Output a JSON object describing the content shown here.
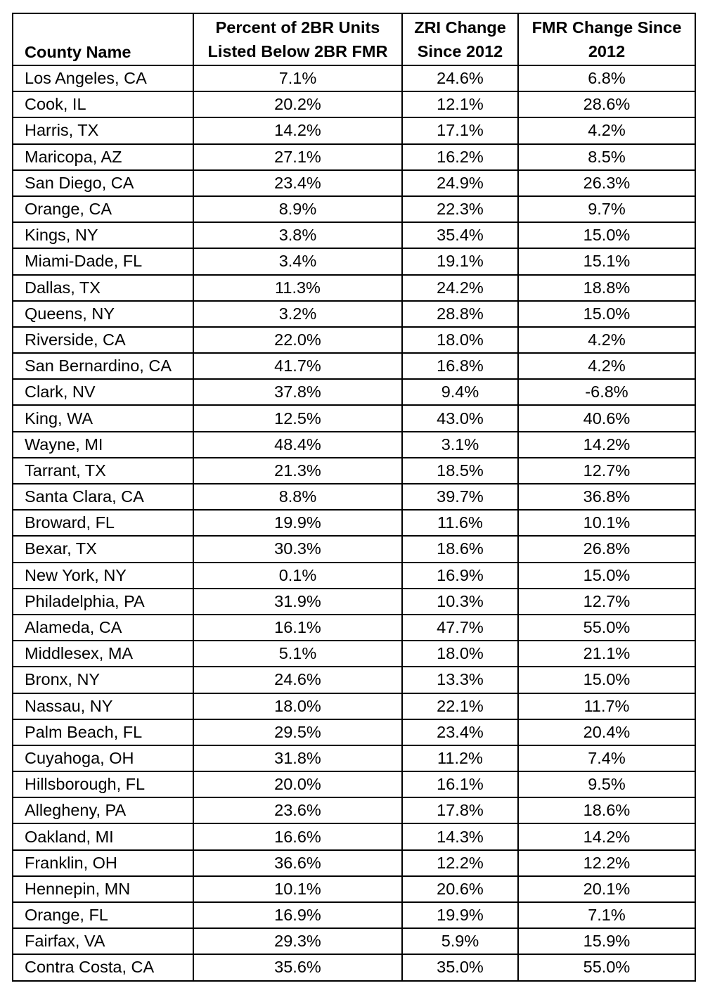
{
  "table": {
    "headers": {
      "county": "County Name",
      "percent_line1": "Percent of 2BR Units",
      "percent_line2": "Listed Below 2BR FMR",
      "zri_line1": "ZRI Change",
      "zri_line2": "Since 2012",
      "fmr_line1": "FMR Change Since",
      "fmr_line2": "2012"
    },
    "rows": [
      {
        "county": "Los Angeles, CA",
        "percent": "7.1%",
        "zri": "24.6%",
        "fmr": "6.8%"
      },
      {
        "county": "Cook, IL",
        "percent": "20.2%",
        "zri": "12.1%",
        "fmr": "28.6%"
      },
      {
        "county": "Harris, TX",
        "percent": "14.2%",
        "zri": "17.1%",
        "fmr": "4.2%"
      },
      {
        "county": "Maricopa, AZ",
        "percent": "27.1%",
        "zri": "16.2%",
        "fmr": "8.5%"
      },
      {
        "county": "San Diego, CA",
        "percent": "23.4%",
        "zri": "24.9%",
        "fmr": "26.3%"
      },
      {
        "county": "Orange, CA",
        "percent": "8.9%",
        "zri": "22.3%",
        "fmr": "9.7%"
      },
      {
        "county": "Kings, NY",
        "percent": "3.8%",
        "zri": "35.4%",
        "fmr": "15.0%"
      },
      {
        "county": "Miami-Dade, FL",
        "percent": "3.4%",
        "zri": "19.1%",
        "fmr": "15.1%"
      },
      {
        "county": "Dallas, TX",
        "percent": "11.3%",
        "zri": "24.2%",
        "fmr": "18.8%"
      },
      {
        "county": "Queens, NY",
        "percent": "3.2%",
        "zri": "28.8%",
        "fmr": "15.0%"
      },
      {
        "county": "Riverside, CA",
        "percent": "22.0%",
        "zri": "18.0%",
        "fmr": "4.2%"
      },
      {
        "county": "San Bernardino, CA",
        "percent": "41.7%",
        "zri": "16.8%",
        "fmr": "4.2%"
      },
      {
        "county": "Clark, NV",
        "percent": "37.8%",
        "zri": "9.4%",
        "fmr": "-6.8%"
      },
      {
        "county": "King, WA",
        "percent": "12.5%",
        "zri": "43.0%",
        "fmr": "40.6%"
      },
      {
        "county": "Wayne, MI",
        "percent": "48.4%",
        "zri": "3.1%",
        "fmr": "14.2%"
      },
      {
        "county": "Tarrant, TX",
        "percent": "21.3%",
        "zri": "18.5%",
        "fmr": "12.7%"
      },
      {
        "county": "Santa Clara, CA",
        "percent": "8.8%",
        "zri": "39.7%",
        "fmr": "36.8%"
      },
      {
        "county": "Broward, FL",
        "percent": "19.9%",
        "zri": "11.6%",
        "fmr": "10.1%"
      },
      {
        "county": "Bexar, TX",
        "percent": "30.3%",
        "zri": "18.6%",
        "fmr": "26.8%"
      },
      {
        "county": "New York, NY",
        "percent": "0.1%",
        "zri": "16.9%",
        "fmr": "15.0%"
      },
      {
        "county": "Philadelphia, PA",
        "percent": "31.9%",
        "zri": "10.3%",
        "fmr": "12.7%"
      },
      {
        "county": "Alameda, CA",
        "percent": "16.1%",
        "zri": "47.7%",
        "fmr": "55.0%"
      },
      {
        "county": "Middlesex, MA",
        "percent": "5.1%",
        "zri": "18.0%",
        "fmr": "21.1%"
      },
      {
        "county": "Bronx, NY",
        "percent": "24.6%",
        "zri": "13.3%",
        "fmr": "15.0%"
      },
      {
        "county": "Nassau, NY",
        "percent": "18.0%",
        "zri": "22.1%",
        "fmr": "11.7%"
      },
      {
        "county": "Palm Beach, FL",
        "percent": "29.5%",
        "zri": "23.4%",
        "fmr": "20.4%"
      },
      {
        "county": "Cuyahoga, OH",
        "percent": "31.8%",
        "zri": "11.2%",
        "fmr": "7.4%"
      },
      {
        "county": "Hillsborough, FL",
        "percent": "20.0%",
        "zri": "16.1%",
        "fmr": "9.5%"
      },
      {
        "county": "Allegheny, PA",
        "percent": "23.6%",
        "zri": "17.8%",
        "fmr": "18.6%"
      },
      {
        "county": "Oakland, MI",
        "percent": "16.6%",
        "zri": "14.3%",
        "fmr": "14.2%"
      },
      {
        "county": "Franklin, OH",
        "percent": "36.6%",
        "zri": "12.2%",
        "fmr": "12.2%"
      },
      {
        "county": "Hennepin, MN",
        "percent": "10.1%",
        "zri": "20.6%",
        "fmr": "20.1%"
      },
      {
        "county": "Orange, FL",
        "percent": "16.9%",
        "zri": "19.9%",
        "fmr": "7.1%"
      },
      {
        "county": "Fairfax, VA",
        "percent": "29.3%",
        "zri": "5.9%",
        "fmr": "15.9%"
      },
      {
        "county": "Contra Costa, CA",
        "percent": "35.6%",
        "zri": "35.0%",
        "fmr": "55.0%"
      }
    ]
  }
}
